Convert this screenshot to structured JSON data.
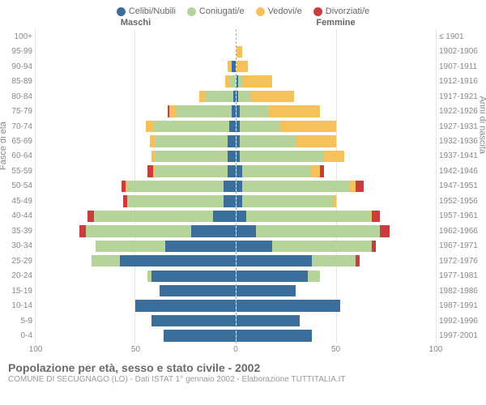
{
  "legend": [
    {
      "label": "Celibi/Nubili",
      "color": "#3b6e9a"
    },
    {
      "label": "Coniugati/e",
      "color": "#b6d49a"
    },
    {
      "label": "Vedovi/e",
      "color": "#f6c15b"
    },
    {
      "label": "Divorziati/e",
      "color": "#c83d3d"
    }
  ],
  "headers": {
    "male": "Maschi",
    "female": "Femmine"
  },
  "y_left_title": "Fasce di età",
  "y_right_title": "Anni di nascita",
  "x_ticks": [
    100,
    50,
    0,
    50,
    100
  ],
  "x_max": 100,
  "age_bands": [
    "100+",
    "95-99",
    "90-94",
    "85-89",
    "80-84",
    "75-79",
    "70-74",
    "65-69",
    "60-64",
    "55-59",
    "50-54",
    "45-49",
    "40-44",
    "35-39",
    "30-34",
    "25-29",
    "20-24",
    "15-19",
    "10-14",
    "5-9",
    "0-4"
  ],
  "birth_bands": [
    "≤ 1901",
    "1902-1906",
    "1907-1911",
    "1912-1916",
    "1917-1921",
    "1922-1926",
    "1927-1931",
    "1932-1936",
    "1937-1941",
    "1942-1946",
    "1947-1951",
    "1952-1956",
    "1957-1961",
    "1962-1966",
    "1967-1971",
    "1972-1976",
    "1977-1981",
    "1982-1986",
    "1987-1991",
    "1992-1996",
    "1997-2001"
  ],
  "male": [
    {
      "cel": 0,
      "con": 0,
      "ved": 0,
      "div": 0
    },
    {
      "cel": 0,
      "con": 0,
      "ved": 0,
      "div": 0
    },
    {
      "cel": 2,
      "con": 0,
      "ved": 2,
      "div": 0
    },
    {
      "cel": 0,
      "con": 3,
      "ved": 2,
      "div": 0
    },
    {
      "cel": 1,
      "con": 14,
      "ved": 3,
      "div": 0
    },
    {
      "cel": 2,
      "con": 28,
      "ved": 3,
      "div": 1
    },
    {
      "cel": 3,
      "con": 38,
      "ved": 4,
      "div": 0
    },
    {
      "cel": 4,
      "con": 36,
      "ved": 3,
      "div": 0
    },
    {
      "cel": 4,
      "con": 36,
      "ved": 2,
      "div": 0
    },
    {
      "cel": 4,
      "con": 36,
      "ved": 1,
      "div": 3
    },
    {
      "cel": 6,
      "con": 48,
      "ved": 1,
      "div": 2
    },
    {
      "cel": 6,
      "con": 48,
      "ved": 0,
      "div": 2
    },
    {
      "cel": 11,
      "con": 60,
      "ved": 0,
      "div": 3
    },
    {
      "cel": 22,
      "con": 53,
      "ved": 0,
      "div": 3
    },
    {
      "cel": 35,
      "con": 35,
      "ved": 0,
      "div": 0
    },
    {
      "cel": 58,
      "con": 14,
      "ved": 0,
      "div": 0
    },
    {
      "cel": 42,
      "con": 2,
      "ved": 0,
      "div": 0
    },
    {
      "cel": 38,
      "con": 0,
      "ved": 0,
      "div": 0
    },
    {
      "cel": 50,
      "con": 0,
      "ved": 0,
      "div": 0
    },
    {
      "cel": 42,
      "con": 0,
      "ved": 0,
      "div": 0
    },
    {
      "cel": 36,
      "con": 0,
      "ved": 0,
      "div": 0
    }
  ],
  "female": [
    {
      "cel": 0,
      "con": 0,
      "ved": 0,
      "div": 0
    },
    {
      "cel": 0,
      "con": 0,
      "ved": 3,
      "div": 0
    },
    {
      "cel": 0,
      "con": 0,
      "ved": 6,
      "div": 0
    },
    {
      "cel": 1,
      "con": 2,
      "ved": 15,
      "div": 0
    },
    {
      "cel": 1,
      "con": 6,
      "ved": 22,
      "div": 0
    },
    {
      "cel": 2,
      "con": 14,
      "ved": 26,
      "div": 0
    },
    {
      "cel": 2,
      "con": 20,
      "ved": 28,
      "div": 0
    },
    {
      "cel": 2,
      "con": 28,
      "ved": 20,
      "div": 0
    },
    {
      "cel": 2,
      "con": 42,
      "ved": 10,
      "div": 0
    },
    {
      "cel": 3,
      "con": 34,
      "ved": 5,
      "div": 2
    },
    {
      "cel": 3,
      "con": 54,
      "ved": 3,
      "div": 4
    },
    {
      "cel": 3,
      "con": 46,
      "ved": 1,
      "div": 0
    },
    {
      "cel": 5,
      "con": 62,
      "ved": 1,
      "div": 4
    },
    {
      "cel": 10,
      "con": 62,
      "ved": 0,
      "div": 5
    },
    {
      "cel": 18,
      "con": 50,
      "ved": 0,
      "div": 2
    },
    {
      "cel": 38,
      "con": 22,
      "ved": 0,
      "div": 2
    },
    {
      "cel": 36,
      "con": 6,
      "ved": 0,
      "div": 0
    },
    {
      "cel": 30,
      "con": 0,
      "ved": 0,
      "div": 0
    },
    {
      "cel": 52,
      "con": 0,
      "ved": 0,
      "div": 0
    },
    {
      "cel": 32,
      "con": 0,
      "ved": 0,
      "div": 0
    },
    {
      "cel": 38,
      "con": 0,
      "ved": 0,
      "div": 0
    }
  ],
  "title": "Popolazione per età, sesso e stato civile - 2002",
  "subtitle": "COMUNE DI SECUGNAGO (LO) - Dati ISTAT 1° gennaio 2002 - Elaborazione TUTTITALIA.IT",
  "colors": {
    "cel": "#3b6e9a",
    "con": "#b6d49a",
    "ved": "#f6c15b",
    "div": "#c83d3d",
    "grid": "#e5e5e5",
    "axis_dash": "#aaaaaa"
  }
}
